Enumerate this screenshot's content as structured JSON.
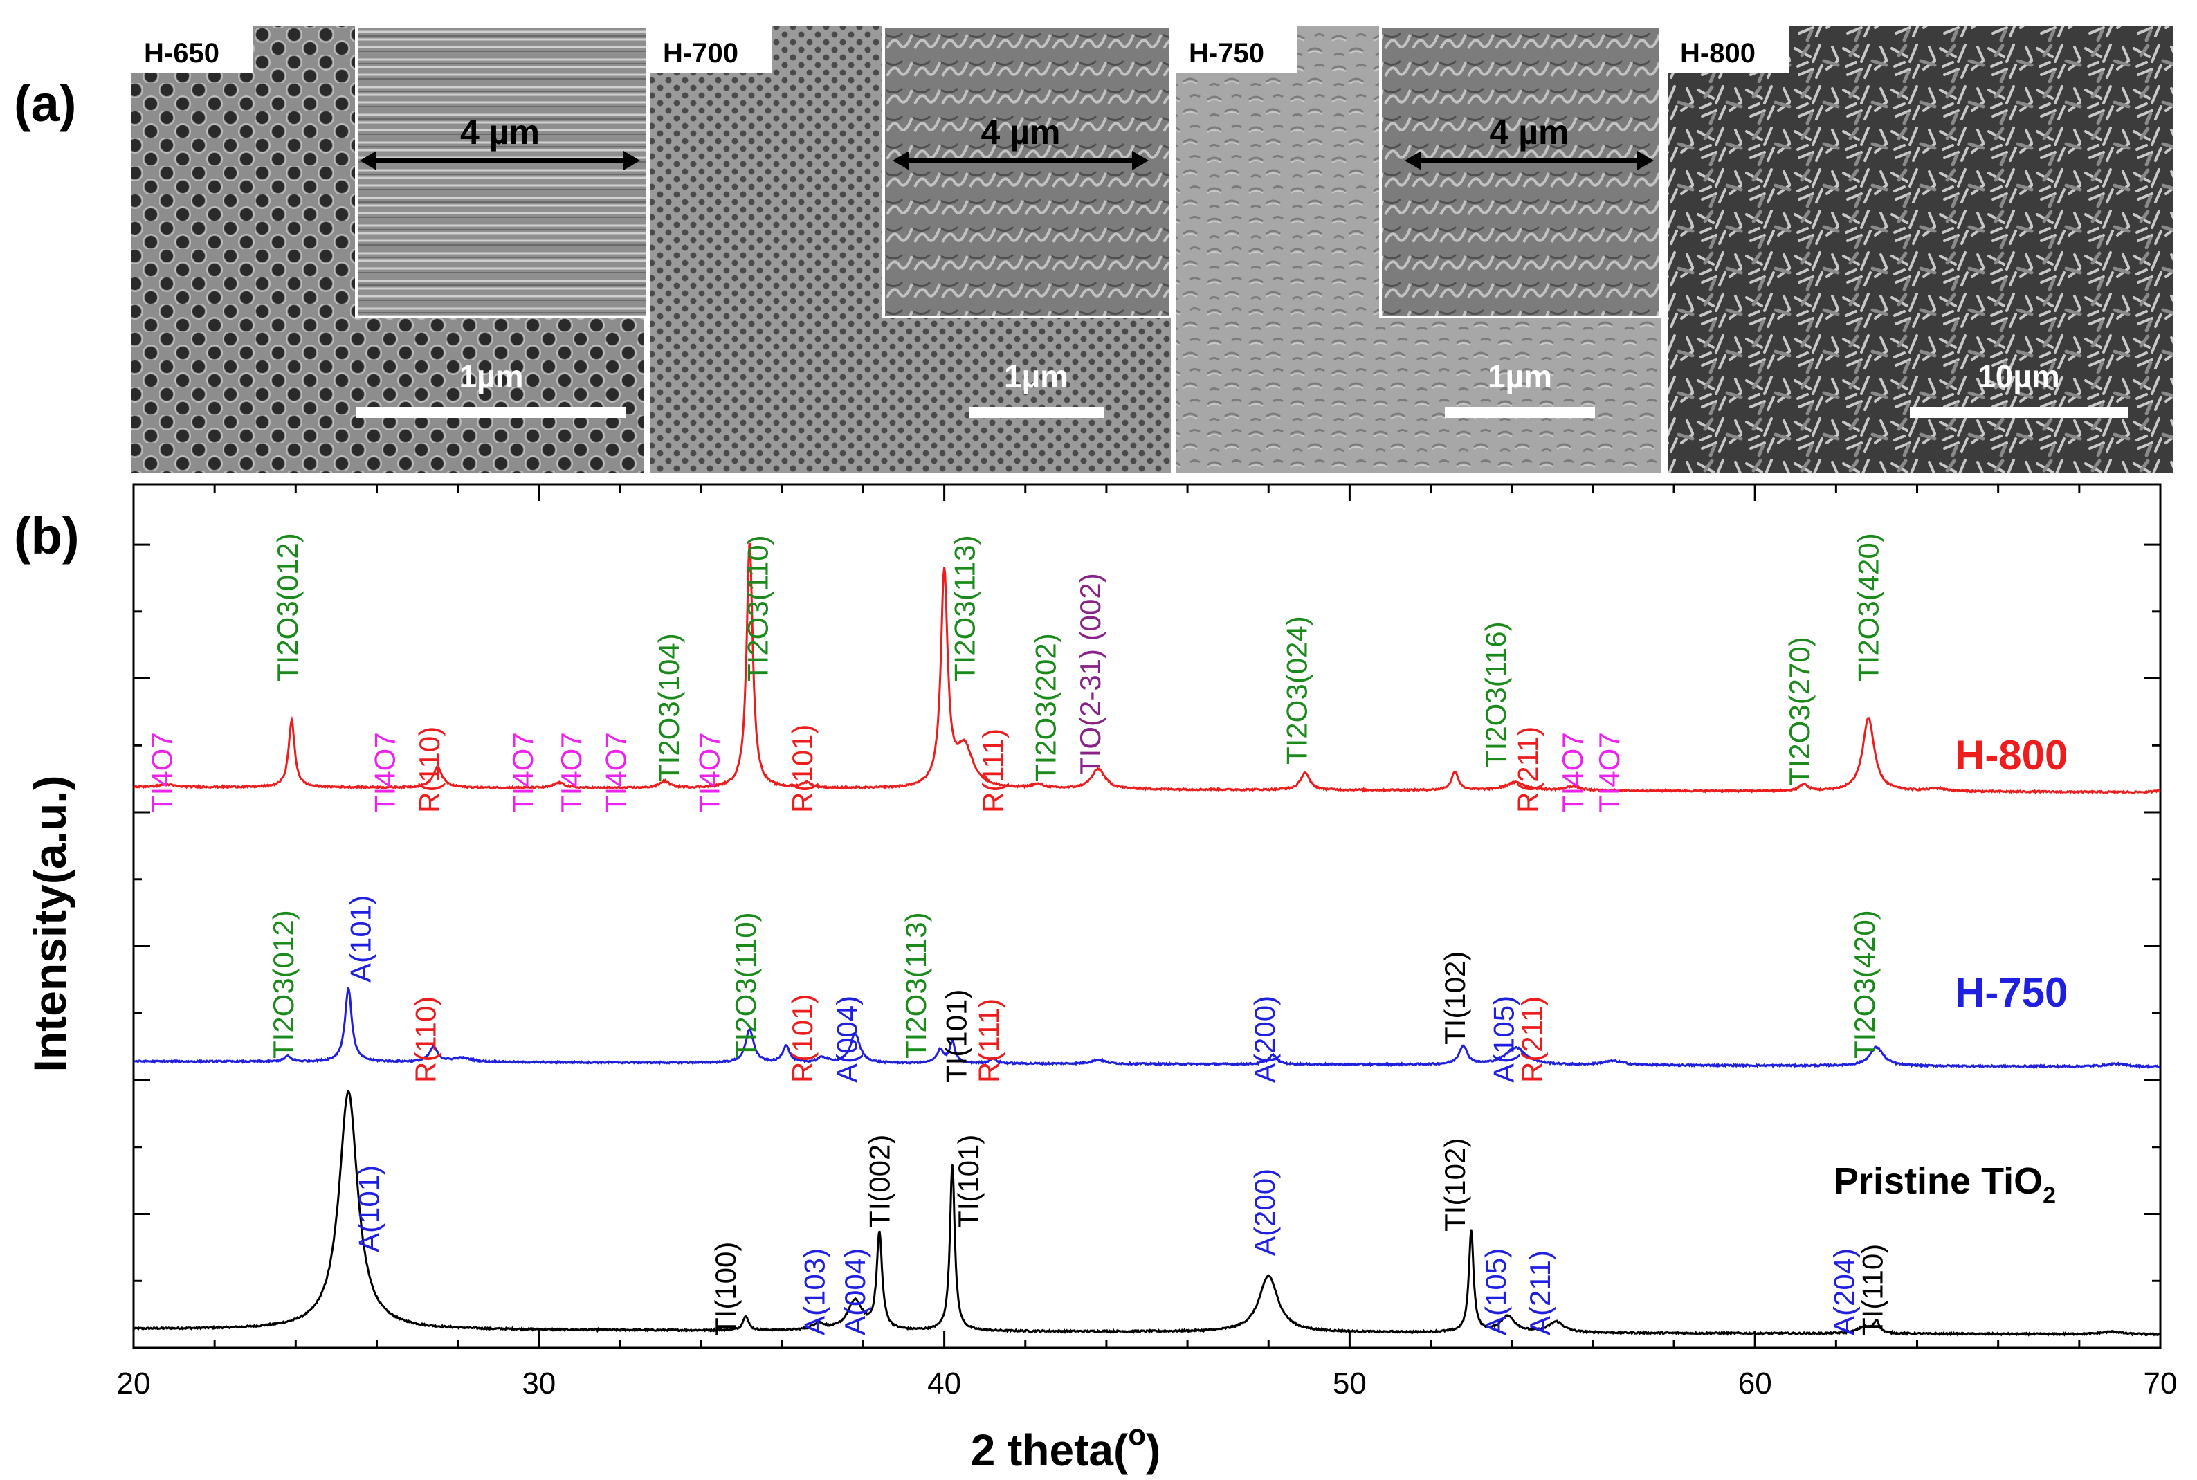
{
  "panel_a": {
    "label": "(a)",
    "images": [
      {
        "name": "H-650",
        "inset_label": "4 µm",
        "scale_bar": "1µm",
        "texture": "pores-large"
      },
      {
        "name": "H-700",
        "inset_label": "4 µm",
        "scale_bar": "1µm",
        "texture": "pores-small"
      },
      {
        "name": "H-750",
        "inset_label": "4 µm",
        "scale_bar": "1µm",
        "texture": "smooth"
      },
      {
        "name": "H-800",
        "inset_label": "",
        "scale_bar": "10µm",
        "texture": "flakes"
      }
    ]
  },
  "panel_b": {
    "label": "(b)"
  },
  "chart_data": {
    "type": "line",
    "xlabel": "2 theta(",
    "xlabel_sup": "o",
    "xlabel_close": ")",
    "ylabel": "Intensity(a.u.)",
    "xlim": [
      20,
      70
    ],
    "xticks": [
      20,
      30,
      40,
      50,
      60,
      70
    ],
    "colors": {
      "black": "#000000",
      "blue": "#1f1fe0",
      "red": "#ee1c1c",
      "green": "#1a8a1a",
      "magenta": "#ee22ee",
      "purple": "#882288"
    },
    "series": [
      {
        "name": "Pristine TiO",
        "name_sub": "2",
        "color": "#000000",
        "baseline": 0.1,
        "noise": 0.006,
        "peaks": [
          [
            25.3,
            1.78,
            0.28
          ],
          [
            35.1,
            0.11,
            0.08
          ],
          [
            36.9,
            0.05,
            0.18
          ],
          [
            37.8,
            0.22,
            0.22
          ],
          [
            38.4,
            0.72,
            0.08
          ],
          [
            40.2,
            1.26,
            0.07
          ],
          [
            48.0,
            0.42,
            0.28
          ],
          [
            53.0,
            0.76,
            0.07
          ],
          [
            53.9,
            0.12,
            0.22
          ],
          [
            55.1,
            0.08,
            0.22
          ],
          [
            62.7,
            0.05,
            0.2
          ],
          [
            63.0,
            0.09,
            0.08
          ],
          [
            68.8,
            0.02,
            0.3
          ]
        ],
        "labels": [
          {
            "text": "A(101)",
            "x": 25.8,
            "color": "#1f1fe0"
          },
          {
            "text": "TI(100)",
            "x": 34.6,
            "color": "#000000"
          },
          {
            "text": "A(103)",
            "x": 36.8,
            "color": "#1f1fe0"
          },
          {
            "text": "A(004)",
            "x": 37.8,
            "color": "#1f1fe0"
          },
          {
            "text": "TI(002)",
            "x": 38.4,
            "color": "#000000"
          },
          {
            "text": "TI(101)",
            "x": 40.6,
            "color": "#000000"
          },
          {
            "text": "A(200)",
            "x": 47.9,
            "color": "#1f1fe0"
          },
          {
            "text": "TI(102)",
            "x": 52.6,
            "color": "#000000"
          },
          {
            "text": "A(105)",
            "x": 53.6,
            "color": "#1f1fe0"
          },
          {
            "text": "A(211)",
            "x": 54.7,
            "color": "#1f1fe0"
          },
          {
            "text": "A(204)",
            "x": 62.2,
            "color": "#1f1fe0"
          },
          {
            "text": "TI(110)",
            "x": 62.9,
            "color": "#000000"
          }
        ]
      },
      {
        "name": "H-750",
        "color": "#1f1fe0",
        "baseline": 2.1,
        "noise": 0.006,
        "peaks": [
          [
            23.8,
            0.04,
            0.1
          ],
          [
            25.3,
            0.55,
            0.1
          ],
          [
            27.4,
            0.11,
            0.12
          ],
          [
            28.1,
            0.03,
            0.3
          ],
          [
            35.2,
            0.25,
            0.12
          ],
          [
            36.1,
            0.13,
            0.1
          ],
          [
            37.0,
            0.04,
            0.15
          ],
          [
            37.8,
            0.22,
            0.14
          ],
          [
            39.9,
            0.1,
            0.1
          ],
          [
            40.2,
            0.16,
            0.08
          ],
          [
            41.2,
            0.04,
            0.1
          ],
          [
            43.8,
            0.03,
            0.2
          ],
          [
            48.1,
            0.07,
            0.12
          ],
          [
            52.8,
            0.14,
            0.12
          ],
          [
            54.1,
            0.13,
            0.3
          ],
          [
            56.5,
            0.03,
            0.3
          ],
          [
            63.0,
            0.14,
            0.2
          ],
          [
            68.9,
            0.02,
            0.3
          ]
        ],
        "labels": [
          {
            "text": "TI2O3(012)",
            "x": 23.7,
            "color": "#1a8a1a"
          },
          {
            "text": "A(101)",
            "x": 25.6,
            "color": "#1f1fe0"
          },
          {
            "text": "R(110)",
            "x": 27.2,
            "color": "#ee1c1c"
          },
          {
            "text": "TI2O3(110)",
            "x": 35.1,
            "color": "#1a8a1a"
          },
          {
            "text": "R(101)",
            "x": 36.5,
            "color": "#ee1c1c"
          },
          {
            "text": "A(004)",
            "x": 37.6,
            "color": "#1f1fe0"
          },
          {
            "text": "TI2O3(113)",
            "x": 39.3,
            "color": "#1a8a1a"
          },
          {
            "text": "TI(101)",
            "x": 40.3,
            "color": "#000000"
          },
          {
            "text": "R(111)",
            "x": 41.1,
            "color": "#ee1c1c"
          },
          {
            "text": "A(200)",
            "x": 47.9,
            "color": "#1f1fe0"
          },
          {
            "text": "TI(102)",
            "x": 52.6,
            "color": "#000000"
          },
          {
            "text": "A(105)",
            "x": 53.8,
            "color": "#1f1fe0"
          },
          {
            "text": "R(211)",
            "x": 54.5,
            "color": "#ee1c1c"
          },
          {
            "text": "TI2O3(420)",
            "x": 62.7,
            "color": "#1a8a1a"
          }
        ]
      },
      {
        "name": "H-800",
        "color": "#ee1c1c",
        "baseline": 4.15,
        "noise": 0.006,
        "peaks": [
          [
            20.8,
            0.02,
            0.2
          ],
          [
            23.9,
            0.5,
            0.09
          ],
          [
            27.5,
            0.15,
            0.14
          ],
          [
            30.5,
            0.04,
            0.15
          ],
          [
            33.1,
            0.05,
            0.15
          ],
          [
            35.2,
            1.85,
            0.09
          ],
          [
            36.6,
            0.04,
            0.15
          ],
          [
            40.0,
            1.6,
            0.1
          ],
          [
            40.5,
            0.3,
            0.25
          ],
          [
            42.3,
            0.03,
            0.2
          ],
          [
            43.8,
            0.15,
            0.2
          ],
          [
            48.9,
            0.13,
            0.13
          ],
          [
            52.6,
            0.14,
            0.1
          ],
          [
            54.1,
            0.06,
            0.3
          ],
          [
            55.5,
            0.03,
            0.2
          ],
          [
            61.2,
            0.05,
            0.12
          ],
          [
            62.8,
            0.55,
            0.17
          ],
          [
            64.5,
            0.02,
            0.3
          ],
          [
            70.0,
            0.02,
            0.1
          ]
        ],
        "labels": [
          {
            "text": "TI4O7",
            "x": 20.7,
            "color": "#ee22ee"
          },
          {
            "text": "TI2O3(012)",
            "x": 23.8,
            "color": "#1a8a1a"
          },
          {
            "text": "TI4O7",
            "x": 26.2,
            "color": "#ee22ee"
          },
          {
            "text": "R(110)",
            "x": 27.3,
            "color": "#ee1c1c"
          },
          {
            "text": "TI4O7",
            "x": 29.6,
            "color": "#ee22ee"
          },
          {
            "text": "TI4O7",
            "x": 30.8,
            "color": "#ee22ee"
          },
          {
            "text": "TI4O7",
            "x": 31.9,
            "color": "#ee22ee"
          },
          {
            "text": "TI2O3(104)",
            "x": 33.2,
            "color": "#1a8a1a"
          },
          {
            "text": "TI4O7",
            "x": 34.2,
            "color": "#ee22ee"
          },
          {
            "text": "TI2O3(110)",
            "x": 35.4,
            "color": "#1a8a1a"
          },
          {
            "text": "R(101)",
            "x": 36.5,
            "color": "#ee1c1c"
          },
          {
            "text": "TI2O3(113)",
            "x": 40.5,
            "color": "#1a8a1a"
          },
          {
            "text": "R(111)",
            "x": 41.2,
            "color": "#ee1c1c"
          },
          {
            "text": "TI2O3(202)",
            "x": 42.5,
            "color": "#1a8a1a"
          },
          {
            "text": "TIO(2-31) (002)",
            "x": 43.6,
            "color": "#882288"
          },
          {
            "text": "TI2O3(024)",
            "x": 48.7,
            "color": "#1a8a1a"
          },
          {
            "text": "TI2O3(116)",
            "x": 53.6,
            "color": "#1a8a1a"
          },
          {
            "text": "R(211)",
            "x": 54.4,
            "color": "#ee1c1c"
          },
          {
            "text": "TI4O7",
            "x": 55.5,
            "color": "#ee22ee"
          },
          {
            "text": "TI4O7",
            "x": 56.4,
            "color": "#ee22ee"
          },
          {
            "text": "TI2O3(270)",
            "x": 61.1,
            "color": "#1a8a1a"
          },
          {
            "text": "TI2O3(420)",
            "x": 62.8,
            "color": "#1a8a1a"
          }
        ]
      }
    ]
  }
}
